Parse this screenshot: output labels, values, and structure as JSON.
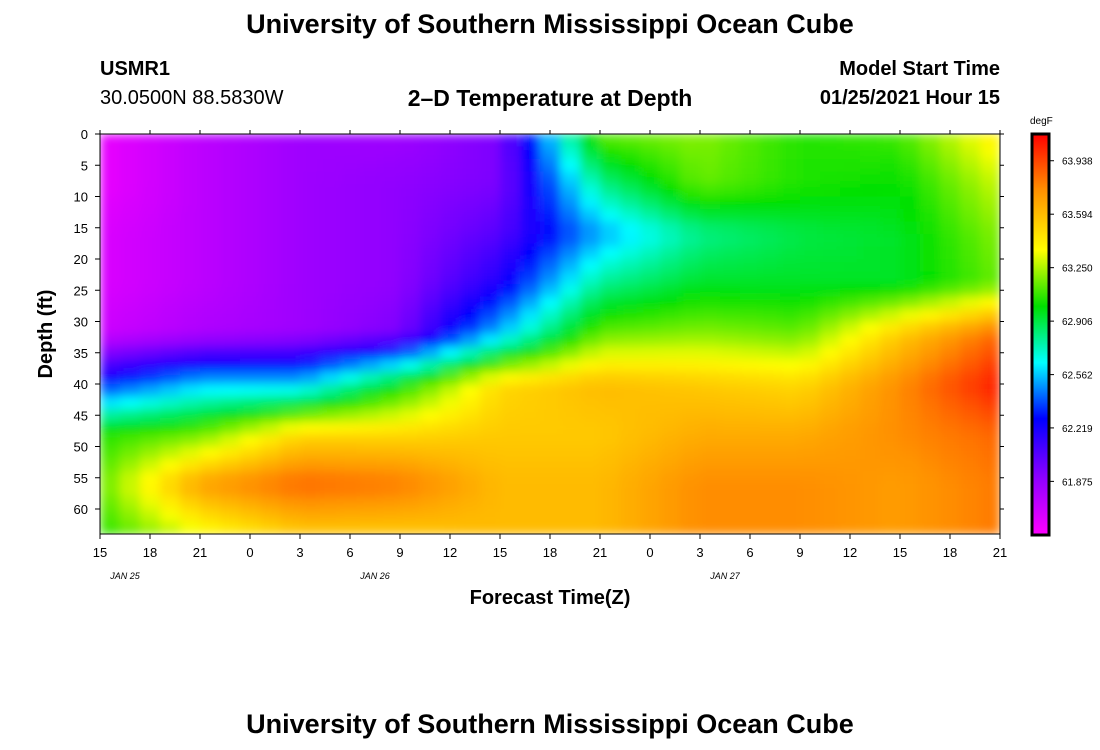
{
  "header": {
    "title_top": "University of Southern Mississippi Ocean Cube",
    "title_bottom": "University of Southern Mississippi Ocean Cube",
    "station": "USMR1",
    "coords": "30.0500N 88.5830W",
    "plot_title": "2–D Temperature at Depth",
    "model_label": "Model Start Time",
    "model_time": "01/25/2021 Hour 15"
  },
  "chart_data": {
    "type": "heatmap",
    "title": "2–D Temperature at Depth",
    "xlabel": "Forecast Time(Z)",
    "ylabel": "Depth (ft)",
    "x_tick_labels": [
      "15",
      "18",
      "21",
      "0",
      "3",
      "6",
      "9",
      "12",
      "15",
      "18",
      "21",
      "0",
      "3",
      "6",
      "9",
      "12",
      "15",
      "18",
      "21"
    ],
    "date_labels": [
      {
        "label": "JAN 25",
        "tick_index": 2
      },
      {
        "label": "JAN 26",
        "tick_index": 7
      },
      {
        "label": "JAN 27",
        "tick_index": 14
      }
    ],
    "y_ticks": [
      0,
      5,
      10,
      15,
      20,
      25,
      30,
      35,
      40,
      45,
      50,
      55,
      60
    ],
    "ylim": [
      0,
      64
    ],
    "y_inverted": true,
    "colorbar": {
      "unit": "degF",
      "labels": [
        63.938,
        63.594,
        63.25,
        62.906,
        62.562,
        62.219,
        61.875
      ],
      "range": [
        61.53,
        64.11
      ],
      "colors": [
        "#ff00ff",
        "#9000ff",
        "#0000ff",
        "#00ffff",
        "#00e000",
        "#ffff00",
        "#ff9000",
        "#ff0000"
      ]
    },
    "grid_depths": [
      0,
      8,
      16,
      24,
      32,
      40,
      48,
      56,
      64
    ],
    "grid_times": [
      0,
      2,
      4,
      6,
      8,
      10,
      12,
      14,
      16,
      18
    ],
    "grid_values_degF": [
      [
        61.6,
        61.75,
        61.85,
        61.85,
        61.95,
        63.15,
        63.2,
        63.05,
        63.1,
        63.45
      ],
      [
        61.6,
        61.75,
        61.85,
        61.9,
        61.95,
        62.8,
        63.15,
        63.05,
        63.0,
        63.3
      ],
      [
        61.65,
        61.75,
        61.85,
        61.9,
        62.05,
        62.5,
        62.8,
        62.9,
        62.95,
        63.2
      ],
      [
        61.65,
        61.75,
        61.85,
        61.9,
        62.2,
        62.8,
        62.95,
        62.95,
        62.95,
        63.15
      ],
      [
        61.7,
        61.8,
        61.85,
        61.95,
        62.55,
        63.15,
        63.2,
        63.15,
        63.55,
        63.85
      ],
      [
        62.3,
        62.55,
        62.55,
        63.0,
        63.5,
        63.6,
        63.55,
        63.5,
        63.75,
        64.05
      ],
      [
        63.05,
        63.15,
        63.5,
        63.5,
        63.55,
        63.55,
        63.65,
        63.65,
        63.75,
        63.85
      ],
      [
        63.15,
        63.7,
        63.85,
        63.8,
        63.6,
        63.6,
        63.75,
        63.75,
        63.7,
        63.8
      ],
      [
        63.05,
        63.35,
        63.55,
        63.55,
        63.6,
        63.6,
        63.75,
        63.75,
        63.7,
        63.8
      ]
    ]
  }
}
